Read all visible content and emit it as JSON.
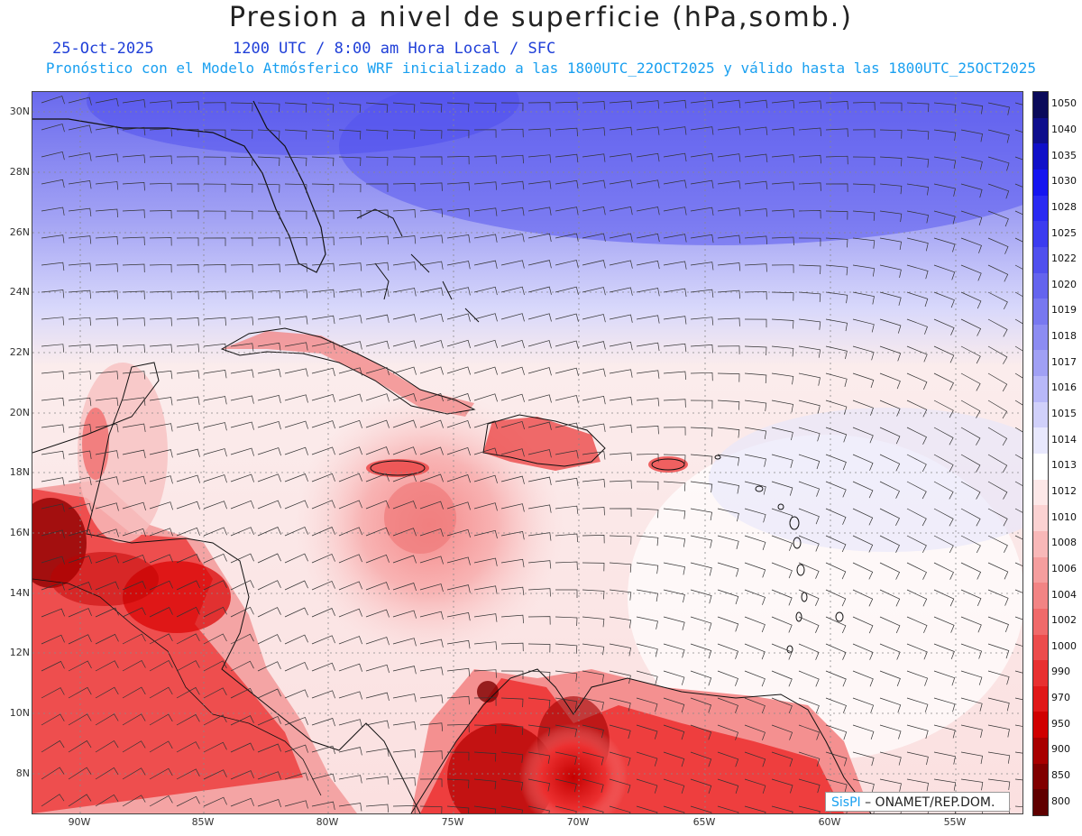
{
  "title": "Presion a nivel de superficie (hPa,somb.)",
  "date": "25-Oct-2025",
  "valid_time": "1200 UTC / 8:00 am Hora Local / SFC",
  "model_line": "Pronóstico con el Modelo Atmósferico WRF inicializado a las 1800UTC_22OCT2025 y válido hasta las  1800UTC_25OCT2025",
  "lat_labels": [
    "30N",
    "28N",
    "26N",
    "24N",
    "22N",
    "20N",
    "18N",
    "16N",
    "14N",
    "12N",
    "10N",
    "8N"
  ],
  "lon_labels": [
    "90W",
    "85W",
    "80W",
    "75W",
    "70W",
    "65W",
    "60W",
    "55W"
  ],
  "colorbar": {
    "levels": [
      "1050",
      "1040",
      "1035",
      "1030",
      "1028",
      "1025",
      "1022",
      "1020",
      "1019",
      "1018",
      "1017",
      "1016",
      "1015",
      "1014",
      "1013",
      "1012",
      "1010",
      "1008",
      "1006",
      "1004",
      "1002",
      "1000",
      "990",
      "970",
      "950",
      "900",
      "850",
      "800"
    ],
    "colors": [
      "#0a0a5a",
      "#0e0e8c",
      "#1010c8",
      "#1515f0",
      "#2a2af2",
      "#3c3cf0",
      "#5050ee",
      "#6464ee",
      "#7878f0",
      "#8c8cf2",
      "#a0a0f4",
      "#b8b8f8",
      "#d0d0fa",
      "#e8e8fd",
      "#ffffff",
      "#fde8e8",
      "#fbd2d2",
      "#f8b8b8",
      "#f59e9e",
      "#f28484",
      "#f06a6a",
      "#ec4c4c",
      "#e83030",
      "#e01818",
      "#d00000",
      "#a80000",
      "#800000",
      "#600000"
    ]
  },
  "credit": {
    "brand": "SisPI",
    "org": "– ONAMET/REP.DOM."
  }
}
